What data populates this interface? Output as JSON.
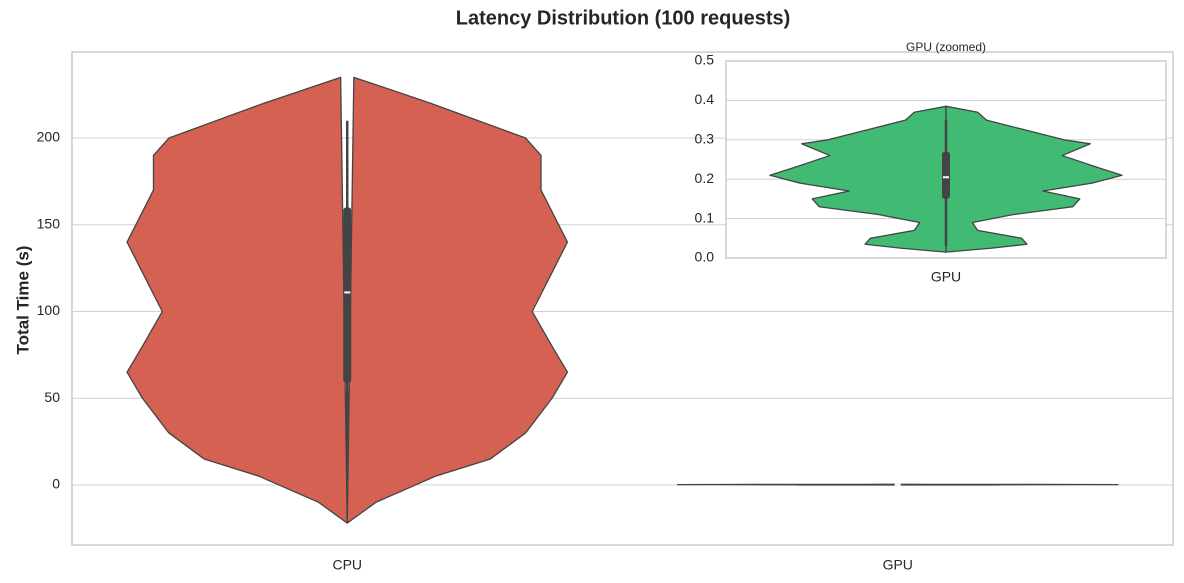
{
  "chart_data": [
    {
      "type": "violin",
      "title": "Latency Distribution (100 requests)",
      "y_label": "Total Time (s)",
      "categories": [
        "CPU",
        "GPU"
      ],
      "ylim": [
        -34.6,
        249.6
      ],
      "yticks": [
        0,
        50,
        100,
        150,
        200
      ],
      "grid": true,
      "violins": [
        {
          "color": "#d46152",
          "density_y": [
            -22,
            -10,
            5,
            15,
            30,
            50,
            65,
            80,
            100,
            120,
            140,
            160,
            170,
            190,
            200,
            220,
            235
          ],
          "density_width": [
            0,
            0.13,
            0.4,
            0.65,
            0.81,
            0.93,
            1,
            0.93,
            0.84,
            0.92,
            1,
            0.92,
            0.88,
            0.88,
            0.81,
            0.38,
            0.03
          ],
          "whisker_low": 2,
          "q1": 59,
          "median": 111,
          "q3": 160,
          "whisker_high": 210
        },
        {
          "color": "#41bb73",
          "density_y": [
            0.015,
            0.025,
            0.035,
            0.05,
            0.07,
            0.09,
            0.11,
            0.13,
            0.15,
            0.17,
            0.19,
            0.21,
            0.23,
            0.26,
            0.29,
            0.3,
            0.35,
            0.37,
            0.385
          ],
          "density_width": [
            0,
            0.26,
            0.46,
            0.43,
            0.18,
            0.15,
            0.38,
            0.72,
            0.76,
            0.55,
            0.83,
            1,
            0.86,
            0.66,
            0.82,
            0.67,
            0.23,
            0.18,
            0
          ],
          "whisker_low": 0.03,
          "q1": 0.15,
          "median": 0.205,
          "q3": 0.27,
          "whisker_high": 0.35
        }
      ]
    },
    {
      "type": "violin",
      "title": "GPU (zoomed)",
      "categories": [
        "GPU"
      ],
      "ylim": [
        0,
        0.5
      ],
      "yticks": [
        {
          "value": 0,
          "label": "0.0"
        },
        0.1,
        0.2,
        0.3,
        0.4,
        0.5
      ],
      "grid": true,
      "violins": [
        {
          "color": "#41bb73",
          "density_y": [
            0.015,
            0.025,
            0.035,
            0.05,
            0.07,
            0.09,
            0.11,
            0.13,
            0.15,
            0.17,
            0.19,
            0.21,
            0.23,
            0.26,
            0.29,
            0.3,
            0.35,
            0.37,
            0.385
          ],
          "density_width": [
            0,
            0.26,
            0.46,
            0.43,
            0.18,
            0.15,
            0.38,
            0.72,
            0.76,
            0.55,
            0.83,
            1,
            0.86,
            0.66,
            0.82,
            0.67,
            0.23,
            0.18,
            0
          ],
          "whisker_low": 0.03,
          "q1": 0.15,
          "median": 0.205,
          "q3": 0.27,
          "whisker_high": 0.35
        }
      ]
    }
  ]
}
